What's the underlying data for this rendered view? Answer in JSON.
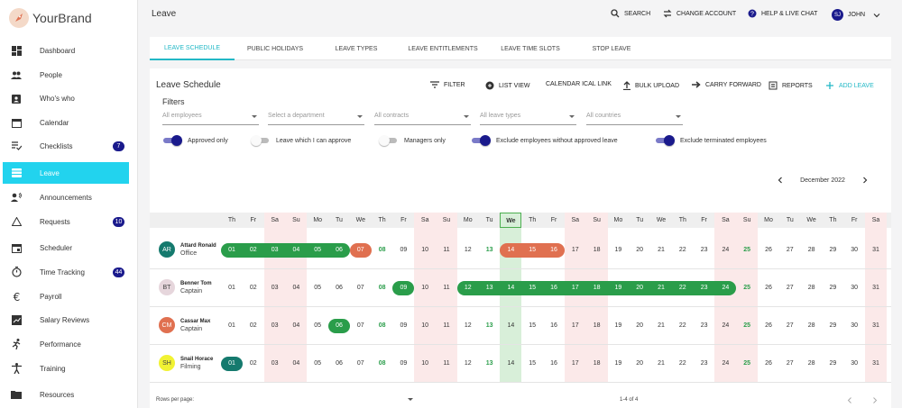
{
  "brand": {
    "name": "YourBrand"
  },
  "sidebar": {
    "items": [
      {
        "label": "Dashboard",
        "icon": "dashboard-icon"
      },
      {
        "label": "People",
        "icon": "people-icon"
      },
      {
        "label": "Who's who",
        "icon": "contact-card-icon"
      },
      {
        "label": "Calendar",
        "icon": "calendar-icon"
      },
      {
        "label": "Checklists",
        "icon": "checklist-icon",
        "badge": "7"
      },
      {
        "label": "Leave",
        "icon": "leave-icon",
        "active": true
      },
      {
        "label": "Announcements",
        "icon": "announcement-icon"
      },
      {
        "label": "Requests",
        "icon": "warning-triangle-icon",
        "badge": "10"
      },
      {
        "label": "Scheduler",
        "icon": "scheduler-icon"
      },
      {
        "label": "Time Tracking",
        "icon": "stopwatch-icon",
        "badge": "44"
      },
      {
        "label": "Payroll",
        "icon": "euro-icon"
      },
      {
        "label": "Salary Reviews",
        "icon": "salary-chart-icon"
      },
      {
        "label": "Performance",
        "icon": "runner-icon"
      },
      {
        "label": "Training",
        "icon": "training-icon"
      },
      {
        "label": "Resources",
        "icon": "folder-icon"
      }
    ]
  },
  "topbar": {
    "title": "Leave",
    "search": "SEARCH",
    "change_account": "CHANGE ACCOUNT",
    "help": "HELP & LIVE CHAT",
    "user_initials": "SJ",
    "user_name": "JOHN"
  },
  "tabs": [
    {
      "label": "LEAVE SCHEDULE",
      "active": true
    },
    {
      "label": "PUBLIC HOLIDAYS"
    },
    {
      "label": "LEAVE TYPES"
    },
    {
      "label": "LEAVE ENTITLEMENTS"
    },
    {
      "label": "LEAVE TIME SLOTS"
    },
    {
      "label": "STOP LEAVE"
    }
  ],
  "card": {
    "title": "Leave Schedule",
    "actions": {
      "filter": "FILTER",
      "list_view": "LIST VIEW",
      "ical": "CALENDAR ICAL LINK",
      "bulk_upload": "BULK UPLOAD",
      "carry_forward": "CARRY FORWARD",
      "reports": "REPORTS",
      "add_leave": "ADD LEAVE"
    },
    "filters_label": "Filters",
    "dropdowns": [
      {
        "placeholder": "All employees"
      },
      {
        "placeholder": "Select a department"
      },
      {
        "placeholder": "All contracts"
      },
      {
        "placeholder": "All leave types"
      },
      {
        "placeholder": "All countries"
      }
    ],
    "toggles": [
      {
        "label": "Approved only",
        "on": true
      },
      {
        "label": "Leave which I can approve",
        "on": false
      },
      {
        "label": "Managers only",
        "on": false
      },
      {
        "label": "Exclude employees without approved leave",
        "on": true
      },
      {
        "label": "Exclude terminated employees",
        "on": true
      }
    ],
    "month": "December 2022"
  },
  "calendar": {
    "day_headers": [
      "Th",
      "Fr",
      "Sa",
      "Su",
      "Mo",
      "Tu",
      "We",
      "Th",
      "Fr",
      "Sa",
      "Su",
      "Mo",
      "Tu",
      "We",
      "Th",
      "Fr",
      "Sa",
      "Su",
      "Mo",
      "Tu",
      "We",
      "Th",
      "Fr",
      "Sa",
      "Su",
      "Mo",
      "Tu",
      "We",
      "Th",
      "Fr",
      "Sa"
    ],
    "dates": [
      "01",
      "02",
      "03",
      "04",
      "05",
      "06",
      "07",
      "08",
      "09",
      "10",
      "11",
      "12",
      "13",
      "14",
      "15",
      "16",
      "17",
      "18",
      "19",
      "20",
      "21",
      "22",
      "23",
      "24",
      "25",
      "26",
      "27",
      "28",
      "29",
      "30",
      "31"
    ],
    "holidays": [
      "08",
      "13",
      "25"
    ],
    "today": "14",
    "colors": {
      "weekend": "#fbe9e9",
      "today": "#d8efd9",
      "approved": "#2a9d4a",
      "pending": "#e07050",
      "teal": "#157a6e"
    },
    "employees": [
      {
        "initials": "AR",
        "name": "Attard Ronald",
        "role": "Office",
        "avatar_bg": "#157a6e",
        "avatar_fg": "#ffffff",
        "bars": [
          {
            "from": 1,
            "to": 6,
            "color": "green"
          },
          {
            "from": 7,
            "to": 7,
            "color": "red"
          },
          {
            "from": 14,
            "to": 16,
            "color": "red"
          }
        ]
      },
      {
        "initials": "BT",
        "name": "Benner Tom",
        "role": "Captain",
        "avatar_bg": "#e6d6dc",
        "avatar_fg": "#444444",
        "bars": [
          {
            "from": 9,
            "to": 9,
            "color": "green"
          },
          {
            "from": 12,
            "to": 24,
            "color": "green"
          }
        ]
      },
      {
        "initials": "CM",
        "name": "Cassar Max",
        "role": "Captain",
        "avatar_bg": "#e07050",
        "avatar_fg": "#ffffff",
        "bars": [
          {
            "from": 6,
            "to": 6,
            "color": "green"
          }
        ]
      },
      {
        "initials": "SH",
        "name": "Snail Horace",
        "role": "Filming",
        "avatar_bg": "#f1f233",
        "avatar_fg": "#444444",
        "bars": [
          {
            "from": 1,
            "to": 1,
            "color": "teal"
          }
        ]
      }
    ]
  },
  "footer": {
    "rows_per_page": "Rows per page:",
    "range": "1-4 of 4"
  }
}
